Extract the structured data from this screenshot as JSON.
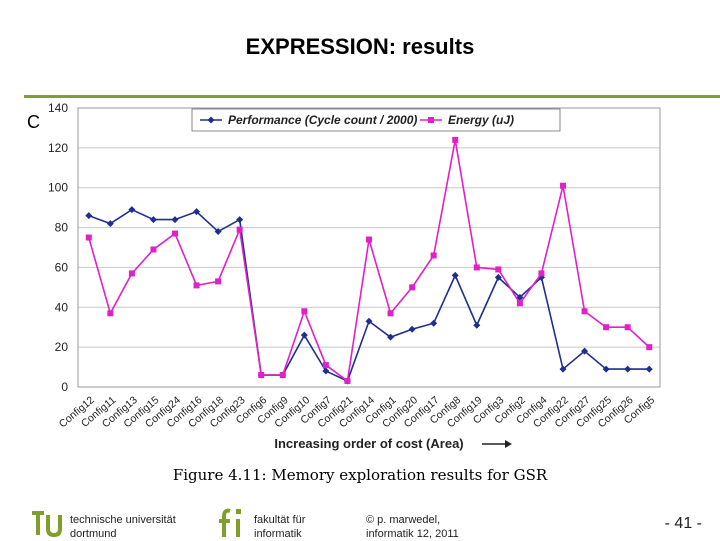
{
  "slide": {
    "title": "EXPRESSION: results",
    "fragment": "C"
  },
  "chart_data": {
    "type": "line",
    "title": "",
    "xlabel": "Increasing order of cost (Area)",
    "ylabel": "",
    "ylim": [
      0,
      140
    ],
    "yticks": [
      0,
      20,
      40,
      60,
      80,
      100,
      120,
      140
    ],
    "grid": true,
    "legend_position": "top",
    "categories": [
      "Config12",
      "Config11",
      "Config13",
      "Config15",
      "Config24",
      "Config16",
      "Config18",
      "Config23",
      "Config6",
      "Config9",
      "Config10",
      "Config7",
      "Config21",
      "Config14",
      "Config1",
      "Config20",
      "Config17",
      "Config8",
      "Config19",
      "Config3",
      "Config2",
      "Config4",
      "Config22",
      "Config27",
      "Config25",
      "Config26",
      "Config5"
    ],
    "series": [
      {
        "name": "Performance (Cycle count / 2000)",
        "color": "#1f2f8f",
        "marker": "diamond",
        "values": [
          86,
          82,
          89,
          84,
          84,
          88,
          78,
          84,
          6,
          6,
          26,
          8,
          3,
          33,
          25,
          29,
          32,
          56,
          31,
          55,
          45,
          55,
          9,
          18,
          9,
          9,
          9
        ]
      },
      {
        "name": "Energy (uJ)",
        "color": "#e020c8",
        "marker": "square",
        "values": [
          75,
          37,
          57,
          69,
          77,
          51,
          53,
          79,
          6,
          6,
          38,
          11,
          3,
          74,
          37,
          50,
          66,
          124,
          60,
          59,
          42,
          57,
          101,
          38,
          30,
          30,
          20
        ]
      }
    ]
  },
  "caption": "Figure 4.11:  Memory exploration results for GSR",
  "footer": {
    "university_line1": "technische universität",
    "university_line2": "dortmund",
    "faculty_line1": "fakultät für",
    "faculty_line2": "informatik",
    "copyright_line1": "© p. marwedel,",
    "copyright_line2": "informatik 12,  2011",
    "page": "- 41 -"
  },
  "colors": {
    "accent": "#7f9f2a",
    "performance": "#1f2f8f",
    "energy": "#e020c8",
    "grid": "#c8c8c8"
  }
}
